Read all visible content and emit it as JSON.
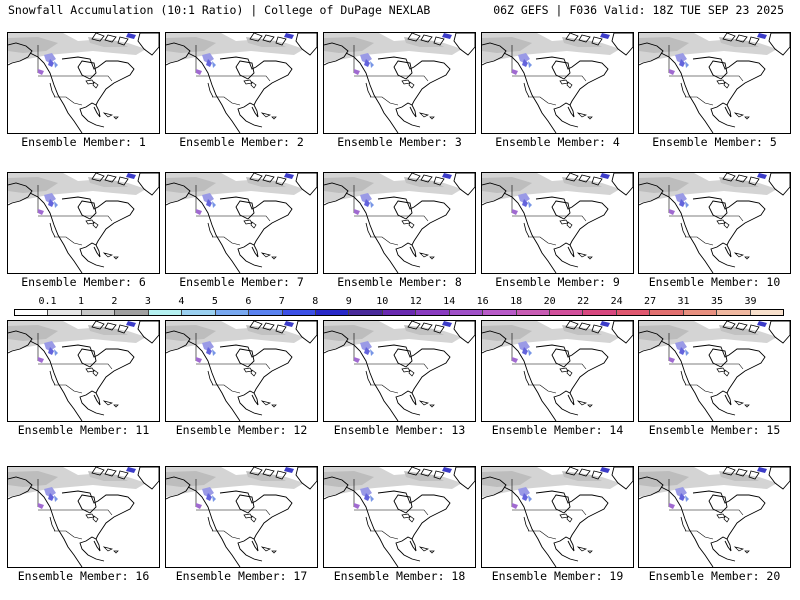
{
  "header": {
    "left": "Snowfall Accumulation (10:1 Ratio) | College of DuPage NEXLAB",
    "right": "06Z GEFS | F036 Valid: 18Z TUE SEP 23 2025"
  },
  "legend": {
    "labels": [
      "0.1",
      "1",
      "2",
      "3",
      "4",
      "5",
      "6",
      "7",
      "8",
      "9",
      "10",
      "12",
      "14",
      "16",
      "18",
      "20",
      "22",
      "24",
      "27",
      "31",
      "35",
      "39"
    ],
    "colors": [
      "#ffffff",
      "#e6e6e6",
      "#c8c8c8",
      "#a0a0a0",
      "#b4f0f0",
      "#9ad0f0",
      "#78a8f0",
      "#5a82f0",
      "#3c50e6",
      "#2828c8",
      "#4a2a9a",
      "#6a2ab0",
      "#8a3cc0",
      "#a050c8",
      "#b85ac8",
      "#c85cb4",
      "#d2509c",
      "#d84880",
      "#e05870",
      "#e27070",
      "#e89080",
      "#f0b8a0",
      "#f8e0cc"
    ]
  },
  "panels": [
    {
      "label": "Ensemble Member: 1"
    },
    {
      "label": "Ensemble Member: 2"
    },
    {
      "label": "Ensemble Member: 3"
    },
    {
      "label": "Ensemble Member: 4"
    },
    {
      "label": "Ensemble Member: 5"
    },
    {
      "label": "Ensemble Member: 6"
    },
    {
      "label": "Ensemble Member: 7"
    },
    {
      "label": "Ensemble Member: 8"
    },
    {
      "label": "Ensemble Member: 9"
    },
    {
      "label": "Ensemble Member: 10"
    },
    {
      "label": "Ensemble Member: 11"
    },
    {
      "label": "Ensemble Member: 12"
    },
    {
      "label": "Ensemble Member: 13"
    },
    {
      "label": "Ensemble Member: 14"
    },
    {
      "label": "Ensemble Member: 15"
    },
    {
      "label": "Ensemble Member: 16"
    },
    {
      "label": "Ensemble Member: 17"
    },
    {
      "label": "Ensemble Member: 18"
    },
    {
      "label": "Ensemble Member: 19"
    },
    {
      "label": "Ensemble Member: 20"
    }
  ]
}
